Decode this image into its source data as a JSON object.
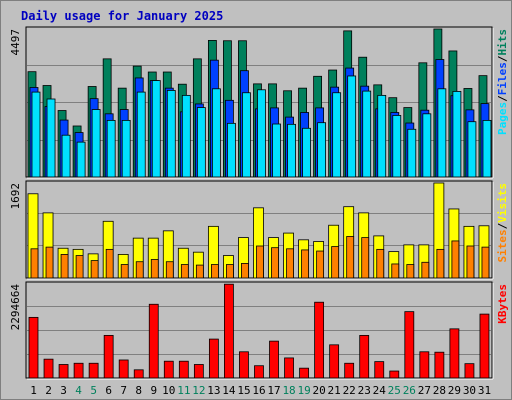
{
  "chart_data": {
    "type": "bar",
    "title": "Daily usage for January 2025",
    "colors": {
      "background": "#c0c0c0",
      "plot": "#c0c0c0",
      "hits": "#00805c",
      "files": "#0040ff",
      "pages": "#00e0ff",
      "visits": "#ffff00",
      "sites": "#ff8000",
      "kbytes": "#ff0000",
      "title": "#0000c0",
      "weekend": "#00805c",
      "weekday": "#000000"
    },
    "categories": [
      "1",
      "2",
      "3",
      "4",
      "5",
      "6",
      "7",
      "8",
      "9",
      "10",
      "11",
      "12",
      "13",
      "14",
      "15",
      "16",
      "17",
      "18",
      "19",
      "20",
      "21",
      "22",
      "23",
      "24",
      "25",
      "26",
      "27",
      "28",
      "29",
      "30",
      "31"
    ],
    "weekend_days": [
      4,
      5,
      11,
      12,
      18,
      19,
      25,
      26
    ],
    "panels": [
      {
        "name": "hits-files-pages",
        "axis_max_label": "4497",
        "ylim": [
          0,
          4497
        ],
        "legend": [
          {
            "label": "Pages",
            "color": "#00e0ff"
          },
          {
            "label": "/",
            "color": "#000000"
          },
          {
            "label": "Files",
            "color": "#0040ff"
          },
          {
            "label": "/",
            "color": "#000000"
          },
          {
            "label": "Hits",
            "color": "#00805c"
          }
        ],
        "series": [
          {
            "name": "Hits",
            "color": "#00805c",
            "values": [
              3200,
              2780,
              2020,
              1550,
              2750,
              3590,
              2700,
              3370,
              3190,
              3190,
              2820,
              3590,
              4150,
              4140,
              4140,
              2830,
              2830,
              2620,
              2700,
              3060,
              3250,
              4440,
              3640,
              2800,
              2410,
              2110,
              3470,
              4500,
              3830,
              2690,
              3080
            ]
          },
          {
            "name": "Files",
            "color": "#0040ff",
            "values": [
              2720,
              2140,
              1730,
              1350,
              2380,
              1920,
              2050,
              3010,
              2930,
              2700,
              1980,
              2220,
              3550,
              2330,
              3230,
              2070,
              2100,
              1820,
              1960,
              2100,
              2730,
              3310,
              2760,
              2070,
              1960,
              1640,
              2030,
              3570,
              2470,
              2040,
              2230
            ]
          },
          {
            "name": "Pages",
            "color": "#00e0ff",
            "values": [
              2580,
              2370,
              1270,
              1060,
              2050,
              1720,
              1720,
              2580,
              2930,
              2630,
              2480,
              2110,
              2680,
              1630,
              2560,
              2650,
              1610,
              1600,
              1480,
              1650,
              2560,
              3070,
              2610,
              2480,
              1870,
              1450,
              1920,
              2680,
              2600,
              1680,
              1720
            ]
          }
        ]
      },
      {
        "name": "sites-visits",
        "axis_max_label": "1692",
        "ylim": [
          0,
          1692
        ],
        "legend": [
          {
            "label": "Sites",
            "color": "#ff8000"
          },
          {
            "label": "/",
            "color": "#000000"
          },
          {
            "label": "Visits",
            "color": "#ffff00"
          }
        ],
        "series": [
          {
            "name": "Visits",
            "color": "#ffff00",
            "values": [
              1500,
              1160,
              530,
              510,
              430,
              1010,
              420,
              710,
              710,
              840,
              530,
              460,
              920,
              400,
              720,
              1250,
              720,
              800,
              680,
              650,
              940,
              1270,
              1160,
              750,
              470,
              590,
              590,
              1700,
              1230,
              920,
              930
            ]
          },
          {
            "name": "Sites",
            "color": "#ff8000",
            "values": [
              520,
              550,
              420,
              400,
              310,
              510,
              240,
              290,
              330,
              290,
              240,
              230,
              240,
              240,
              260,
              570,
              540,
              520,
              500,
              480,
              560,
              740,
              720,
              510,
              250,
              240,
              280,
              510,
              660,
              570,
              550
            ]
          }
        ]
      },
      {
        "name": "kbytes",
        "axis_max_label": "2294664",
        "ylim": [
          0,
          2294664
        ],
        "legend": [
          {
            "label": "KBytes",
            "color": "#ff0000"
          }
        ],
        "series": [
          {
            "name": "KBytes",
            "color": "#ff0000",
            "values": [
              1480000,
              460000,
              330000,
              360000,
              360000,
              1040000,
              440000,
              200000,
              1800000,
              410000,
              410000,
              330000,
              950000,
              2290000,
              640000,
              300000,
              900000,
              490000,
              240000,
              1850000,
              810000,
              360000,
              1040000,
              400000,
              170000,
              1620000,
              640000,
              630000,
              1200000,
              350000,
              1560000
            ]
          }
        ]
      }
    ]
  }
}
